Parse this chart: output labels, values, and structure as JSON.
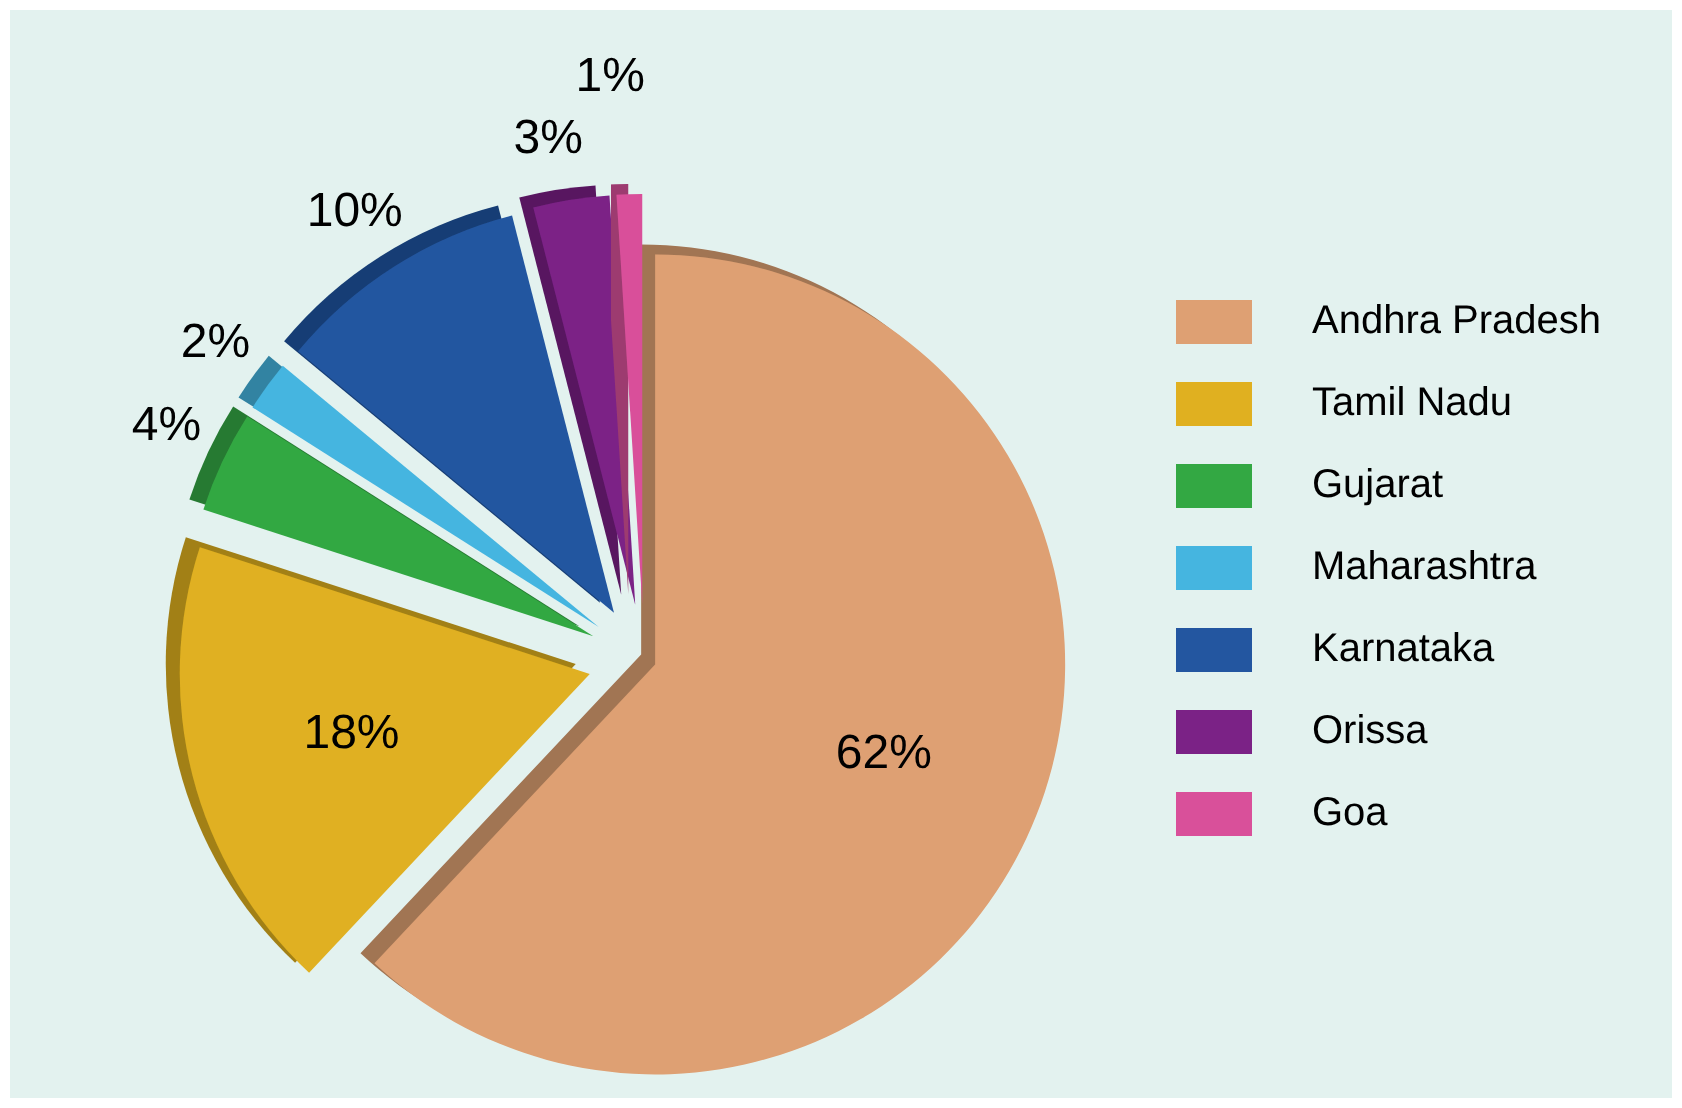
{
  "chart_data": {
    "type": "pie",
    "categories": [
      "Andhra Pradesh",
      "Tamil Nadu",
      "Gujarat",
      "Maharashtra",
      "Karnataka",
      "Orissa",
      "Goa"
    ],
    "values": [
      62,
      18,
      4,
      2,
      10,
      3,
      1
    ],
    "colors": [
      "#dea073",
      "#e0b020",
      "#33a843",
      "#45b5e0",
      "#2356a0",
      "#7b2286",
      "#d9509a"
    ],
    "value_labels": [
      "62%",
      "18%",
      "4%",
      "2%",
      "10%",
      "3%",
      "1%"
    ],
    "legend": "right"
  }
}
